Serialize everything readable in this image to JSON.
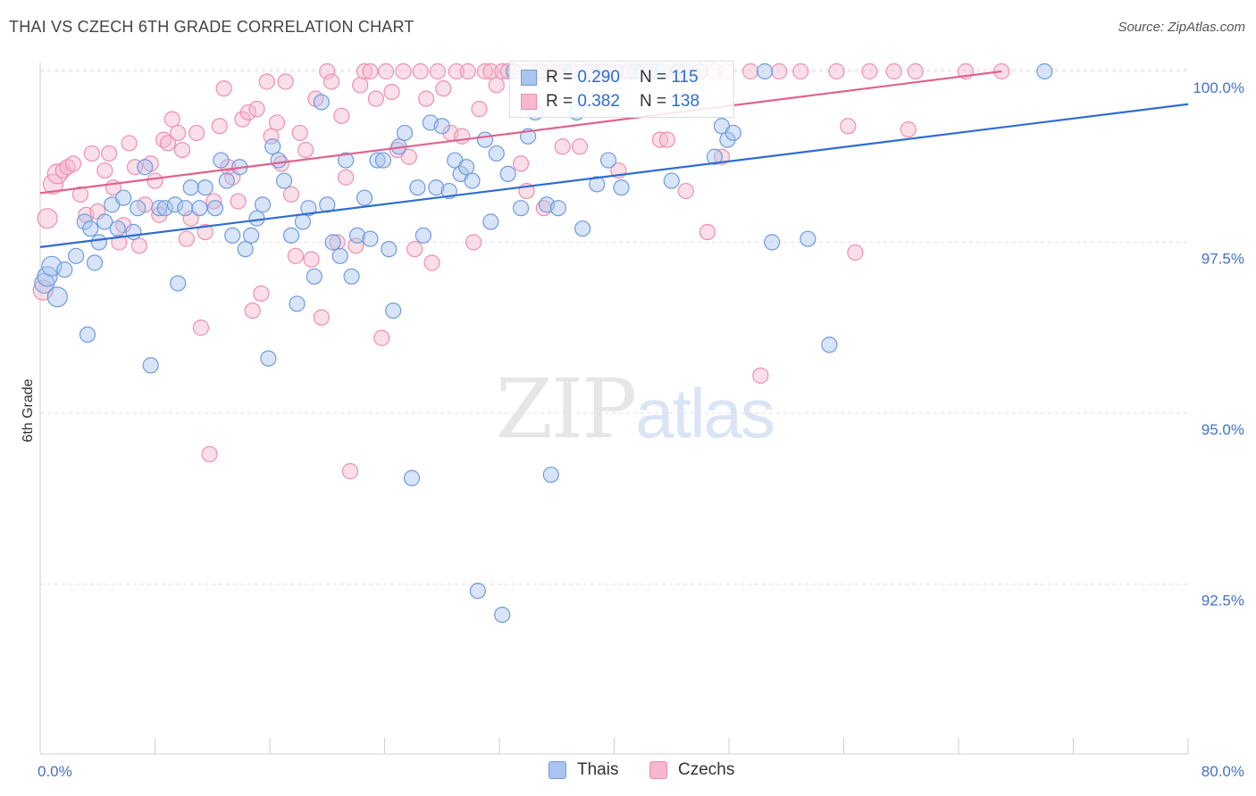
{
  "title": "THAI VS CZECH 6TH GRADE CORRELATION CHART",
  "source": "Source: ZipAtlas.com",
  "watermark": {
    "zip": "ZIP",
    "atlas": "atlas"
  },
  "legend": {
    "r_label": "R =",
    "n_label": "N =",
    "thais": {
      "r": "0.290",
      "n": "115"
    },
    "czechs": {
      "r": "0.382",
      "n": "138"
    }
  },
  "bottom_legend": {
    "thais": "Thais",
    "czechs": "Czechs"
  },
  "colors": {
    "thais_fill": "#a9c4ee",
    "thais_stroke": "#6f9be0",
    "thais_line": "#2f6cd1",
    "czechs_fill": "#f6b8cc",
    "czechs_stroke": "#ee8fae",
    "czechs_line": "#e0628e"
  },
  "chart_data": {
    "type": "scatter",
    "title": "THAI VS CZECH 6TH GRADE CORRELATION CHART",
    "xlabel": "",
    "ylabel": "6th Grade",
    "xlim": [
      0,
      80
    ],
    "ylim": [
      90.3,
      100.4
    ],
    "x_tick_labels": [
      "0.0%",
      "80.0%"
    ],
    "y_ticks": [
      92.5,
      95.0,
      97.5,
      100.0
    ],
    "y_tick_labels": [
      "92.5%",
      "95.0%",
      "97.5%",
      "100.0%"
    ],
    "grid": true,
    "legend_position": "top-center",
    "series": [
      {
        "name": "Thais",
        "trend": {
          "x": [
            0,
            80
          ],
          "y": [
            97.43,
            99.52
          ]
        },
        "points": [
          [
            0.3,
            96.9
          ],
          [
            0.5,
            97.0
          ],
          [
            0.8,
            97.15
          ],
          [
            1.2,
            96.7
          ],
          [
            1.7,
            97.1
          ],
          [
            2.5,
            97.3
          ],
          [
            3.1,
            97.8
          ],
          [
            3.5,
            97.7
          ],
          [
            3.8,
            97.2
          ],
          [
            3.3,
            96.15
          ],
          [
            4.1,
            97.5
          ],
          [
            4.5,
            97.8
          ],
          [
            5.0,
            98.05
          ],
          [
            5.4,
            97.7
          ],
          [
            5.8,
            98.15
          ],
          [
            6.5,
            97.65
          ],
          [
            6.8,
            98.0
          ],
          [
            7.3,
            98.6
          ],
          [
            7.7,
            95.7
          ],
          [
            8.3,
            98.0
          ],
          [
            8.7,
            98.0
          ],
          [
            9.4,
            98.05
          ],
          [
            9.6,
            96.9
          ],
          [
            10.1,
            98.0
          ],
          [
            10.5,
            98.3
          ],
          [
            11.1,
            98.0
          ],
          [
            11.5,
            98.3
          ],
          [
            12.2,
            98.0
          ],
          [
            12.6,
            98.7
          ],
          [
            13.0,
            98.4
          ],
          [
            13.4,
            97.6
          ],
          [
            13.9,
            98.6
          ],
          [
            14.3,
            97.4
          ],
          [
            14.7,
            97.6
          ],
          [
            15.1,
            97.85
          ],
          [
            15.5,
            98.05
          ],
          [
            15.9,
            95.8
          ],
          [
            16.2,
            98.9
          ],
          [
            16.6,
            98.7
          ],
          [
            17.0,
            98.4
          ],
          [
            17.5,
            97.6
          ],
          [
            17.9,
            96.6
          ],
          [
            18.3,
            97.8
          ],
          [
            18.7,
            98.0
          ],
          [
            19.1,
            97.0
          ],
          [
            19.6,
            99.55
          ],
          [
            20.0,
            98.05
          ],
          [
            20.4,
            97.5
          ],
          [
            20.9,
            97.3
          ],
          [
            21.3,
            98.7
          ],
          [
            21.7,
            97.0
          ],
          [
            22.1,
            97.6
          ],
          [
            22.6,
            98.15
          ],
          [
            23.0,
            97.55
          ],
          [
            23.5,
            98.7
          ],
          [
            23.9,
            98.7
          ],
          [
            24.3,
            97.4
          ],
          [
            24.6,
            96.5
          ],
          [
            25.0,
            98.9
          ],
          [
            25.4,
            99.1
          ],
          [
            25.9,
            94.05
          ],
          [
            26.3,
            98.3
          ],
          [
            26.7,
            97.6
          ],
          [
            27.2,
            99.25
          ],
          [
            27.6,
            98.3
          ],
          [
            28.0,
            99.2
          ],
          [
            28.5,
            98.25
          ],
          [
            28.9,
            98.7
          ],
          [
            29.3,
            98.5
          ],
          [
            29.7,
            98.6
          ],
          [
            30.1,
            98.4
          ],
          [
            30.5,
            92.4
          ],
          [
            31.0,
            99.0
          ],
          [
            31.4,
            97.8
          ],
          [
            31.8,
            98.8
          ],
          [
            32.2,
            92.05
          ],
          [
            32.6,
            98.5
          ],
          [
            33.0,
            100.0
          ],
          [
            33.5,
            98.0
          ],
          [
            34.0,
            99.05
          ],
          [
            34.5,
            99.4
          ],
          [
            34.9,
            100.0
          ],
          [
            35.3,
            98.05
          ],
          [
            35.6,
            94.1
          ],
          [
            36.1,
            98.0
          ],
          [
            36.5,
            100.0
          ],
          [
            37.0,
            100.0
          ],
          [
            37.4,
            99.4
          ],
          [
            37.8,
            97.7
          ],
          [
            38.3,
            100.0
          ],
          [
            38.8,
            98.35
          ],
          [
            39.2,
            100.0
          ],
          [
            39.6,
            98.7
          ],
          [
            40.1,
            100.0
          ],
          [
            40.5,
            98.3
          ],
          [
            41.0,
            100.0
          ],
          [
            41.5,
            100.0
          ],
          [
            42.0,
            100.0
          ],
          [
            42.5,
            100.0
          ],
          [
            43.0,
            100.0
          ],
          [
            43.4,
            100.0
          ],
          [
            44.0,
            98.4
          ],
          [
            44.5,
            100.0
          ],
          [
            45.0,
            100.0
          ],
          [
            46.0,
            100.0
          ],
          [
            47.0,
            98.75
          ],
          [
            47.5,
            99.2
          ],
          [
            47.9,
            99.0
          ],
          [
            48.3,
            99.1
          ],
          [
            50.5,
            100.0
          ],
          [
            51.0,
            97.5
          ],
          [
            53.5,
            97.55
          ],
          [
            55.0,
            96.0
          ],
          [
            70.0,
            100.0
          ]
        ]
      },
      {
        "name": "Czechs",
        "trend": {
          "x": [
            0,
            67
          ],
          "y": [
            98.22,
            100.0
          ]
        },
        "points": [
          [
            0.2,
            96.8
          ],
          [
            0.5,
            97.85
          ],
          [
            0.9,
            98.35
          ],
          [
            1.2,
            98.5
          ],
          [
            1.6,
            98.55
          ],
          [
            1.9,
            98.6
          ],
          [
            2.3,
            98.65
          ],
          [
            2.8,
            98.2
          ],
          [
            3.2,
            97.9
          ],
          [
            3.6,
            98.8
          ],
          [
            4.0,
            97.95
          ],
          [
            4.5,
            98.55
          ],
          [
            4.8,
            98.8
          ],
          [
            5.1,
            98.3
          ],
          [
            5.5,
            97.5
          ],
          [
            5.8,
            97.75
          ],
          [
            6.2,
            98.95
          ],
          [
            6.6,
            98.6
          ],
          [
            6.9,
            97.45
          ],
          [
            7.3,
            98.05
          ],
          [
            7.7,
            98.65
          ],
          [
            8.0,
            98.4
          ],
          [
            8.3,
            97.9
          ],
          [
            8.6,
            99.0
          ],
          [
            8.9,
            98.95
          ],
          [
            9.2,
            99.3
          ],
          [
            9.6,
            99.1
          ],
          [
            9.9,
            98.85
          ],
          [
            10.2,
            97.55
          ],
          [
            10.5,
            97.85
          ],
          [
            10.9,
            99.1
          ],
          [
            11.2,
            96.25
          ],
          [
            11.5,
            97.65
          ],
          [
            11.8,
            94.4
          ],
          [
            12.1,
            98.1
          ],
          [
            12.5,
            99.2
          ],
          [
            12.8,
            99.75
          ],
          [
            13.1,
            98.6
          ],
          [
            13.4,
            98.45
          ],
          [
            13.8,
            98.1
          ],
          [
            14.1,
            99.3
          ],
          [
            14.5,
            99.4
          ],
          [
            14.8,
            96.5
          ],
          [
            15.1,
            99.45
          ],
          [
            15.4,
            96.75
          ],
          [
            15.8,
            99.85
          ],
          [
            16.1,
            99.05
          ],
          [
            16.5,
            99.25
          ],
          [
            16.8,
            98.65
          ],
          [
            17.1,
            99.85
          ],
          [
            17.5,
            98.2
          ],
          [
            17.8,
            97.3
          ],
          [
            18.1,
            99.1
          ],
          [
            18.5,
            98.85
          ],
          [
            18.9,
            97.25
          ],
          [
            19.2,
            99.6
          ],
          [
            19.6,
            96.4
          ],
          [
            20.0,
            100.0
          ],
          [
            20.3,
            99.85
          ],
          [
            20.7,
            97.5
          ],
          [
            21.0,
            99.35
          ],
          [
            21.3,
            98.45
          ],
          [
            21.6,
            94.15
          ],
          [
            22.0,
            97.45
          ],
          [
            22.3,
            99.8
          ],
          [
            22.6,
            100.0
          ],
          [
            23.0,
            100.0
          ],
          [
            23.4,
            99.6
          ],
          [
            23.8,
            96.1
          ],
          [
            24.1,
            100.0
          ],
          [
            24.5,
            99.7
          ],
          [
            24.9,
            98.85
          ],
          [
            25.3,
            100.0
          ],
          [
            25.7,
            98.75
          ],
          [
            26.1,
            97.4
          ],
          [
            26.5,
            100.0
          ],
          [
            26.9,
            99.6
          ],
          [
            27.3,
            97.2
          ],
          [
            27.7,
            100.0
          ],
          [
            28.1,
            99.75
          ],
          [
            28.6,
            99.1
          ],
          [
            29.0,
            100.0
          ],
          [
            29.4,
            99.05
          ],
          [
            29.8,
            100.0
          ],
          [
            30.2,
            97.5
          ],
          [
            30.6,
            99.45
          ],
          [
            31.0,
            100.0
          ],
          [
            31.4,
            100.0
          ],
          [
            31.8,
            99.8
          ],
          [
            32.2,
            100.0
          ],
          [
            32.6,
            100.0
          ],
          [
            33.0,
            100.0
          ],
          [
            33.5,
            98.65
          ],
          [
            33.9,
            98.25
          ],
          [
            34.3,
            100.0
          ],
          [
            34.7,
            100.0
          ],
          [
            35.1,
            98.0
          ],
          [
            35.5,
            100.0
          ],
          [
            36.0,
            100.0
          ],
          [
            36.4,
            98.9
          ],
          [
            36.8,
            100.0
          ],
          [
            37.2,
            100.0
          ],
          [
            37.6,
            98.9
          ],
          [
            38.0,
            100.0
          ],
          [
            38.5,
            100.0
          ],
          [
            39.0,
            100.0
          ],
          [
            39.4,
            100.0
          ],
          [
            39.8,
            100.0
          ],
          [
            40.3,
            98.55
          ],
          [
            40.8,
            100.0
          ],
          [
            41.2,
            100.0
          ],
          [
            41.7,
            100.0
          ],
          [
            42.2,
            100.0
          ],
          [
            42.7,
            100.0
          ],
          [
            43.2,
            99.0
          ],
          [
            43.7,
            99.0
          ],
          [
            44.1,
            100.0
          ],
          [
            44.6,
            100.0
          ],
          [
            45.0,
            98.25
          ],
          [
            45.5,
            100.0
          ],
          [
            46.0,
            100.0
          ],
          [
            46.5,
            97.65
          ],
          [
            47.0,
            100.0
          ],
          [
            47.5,
            98.75
          ],
          [
            47.8,
            100.0
          ],
          [
            49.5,
            100.0
          ],
          [
            50.2,
            95.55
          ],
          [
            51.5,
            100.0
          ],
          [
            53.0,
            100.0
          ],
          [
            55.5,
            100.0
          ],
          [
            56.3,
            99.2
          ],
          [
            56.8,
            97.35
          ],
          [
            57.8,
            100.0
          ],
          [
            59.5,
            100.0
          ],
          [
            60.5,
            99.15
          ],
          [
            61.0,
            100.0
          ],
          [
            64.5,
            100.0
          ],
          [
            67.0,
            100.0
          ]
        ]
      }
    ]
  }
}
